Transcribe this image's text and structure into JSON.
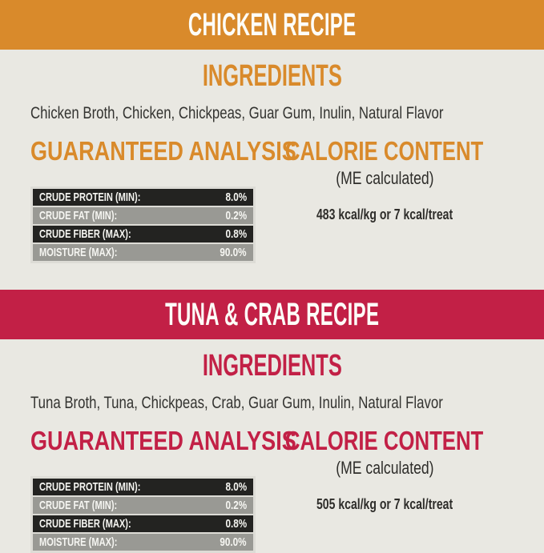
{
  "colors": {
    "chicken_accent": "#d98a2b",
    "tuna_accent": "#c22046",
    "background": "#e9e8e2",
    "table_dark_row": "#232321",
    "table_gray_row": "#999994",
    "body_text": "#333330"
  },
  "sections": [
    {
      "banner_title": "CHICKEN RECIPE",
      "ingredients_heading": "INGREDIENTS",
      "ingredients_text": "Chicken Broth, Chicken, Chickpeas, Guar Gum, Inulin, Natural Flavor",
      "analysis_heading": "GUARANTEED ANALYSIS",
      "analysis_rows": [
        {
          "label": "CRUDE PROTEIN (MIN):",
          "value": "8.0%"
        },
        {
          "label": "CRUDE FAT (MIN):",
          "value": "0.2%"
        },
        {
          "label": "CRUDE FIBER (MAX):",
          "value": "0.8%"
        },
        {
          "label": "MOISTURE (MAX):",
          "value": "90.0%"
        }
      ],
      "calorie_heading": "CALORIE CONTENT",
      "calorie_subheading": "(ME calculated)",
      "calorie_value": "483 kcal/kg or 7 kcal/treat"
    },
    {
      "banner_title": "TUNA & CRAB RECIPE",
      "ingredients_heading": "INGREDIENTS",
      "ingredients_text": "Tuna Broth, Tuna, Chickpeas, Crab, Guar Gum, Inulin, Natural Flavor",
      "analysis_heading": "GUARANTEED ANALYSIS",
      "analysis_rows": [
        {
          "label": "CRUDE PROTEIN (MIN):",
          "value": "8.0%"
        },
        {
          "label": "CRUDE FAT (MIN):",
          "value": "0.2%"
        },
        {
          "label": "CRUDE FIBER (MAX):",
          "value": "0.8%"
        },
        {
          "label": "MOISTURE (MAX):",
          "value": "90.0%"
        }
      ],
      "calorie_heading": "CALORIE CONTENT",
      "calorie_subheading": "(ME calculated)",
      "calorie_value": "505 kcal/kg or 7 kcal/treat"
    }
  ]
}
